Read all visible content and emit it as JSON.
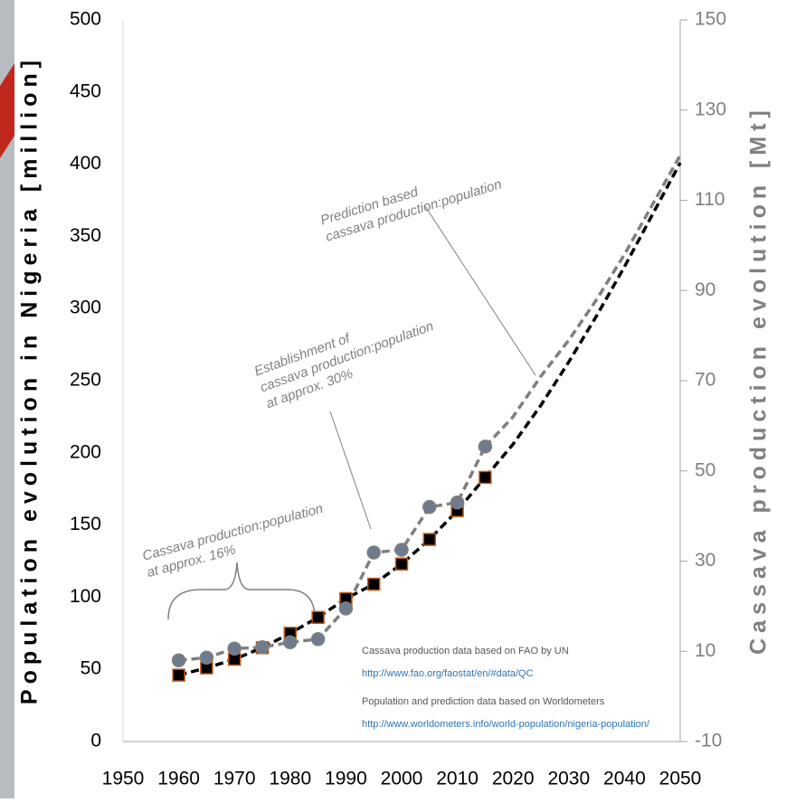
{
  "chart_data": {
    "type": "line",
    "y_label": "Population evolution in Nigeria [million]",
    "y2_label": "Cassava production evolution [Mt]",
    "xlim": [
      1950,
      2050
    ],
    "xticks": [
      1950,
      1960,
      1970,
      1980,
      1990,
      2000,
      2010,
      2020,
      2030,
      2040,
      2050
    ],
    "ylim": [
      0,
      500
    ],
    "yticks": [
      0,
      50,
      100,
      150,
      200,
      250,
      300,
      350,
      400,
      450,
      500
    ],
    "y2lim": [
      -10,
      150
    ],
    "y2ticks": [
      -10,
      10,
      30,
      50,
      70,
      90,
      110,
      130,
      150
    ],
    "series": [
      {
        "axis": "y",
        "color": "#000000",
        "marker": "square",
        "marker_edge": "#c55a11",
        "x": [
          1960,
          1965,
          1970,
          1975,
          1980,
          1985,
          1990,
          1995,
          2000,
          2005,
          2010,
          2015
        ],
        "values": [
          46,
          51,
          57,
          65,
          75,
          86,
          99,
          109,
          123,
          140,
          160,
          183
        ]
      },
      {
        "axis": "y",
        "color": "#000000",
        "marker": "none",
        "x": [
          2015,
          2020,
          2025,
          2030,
          2035,
          2040,
          2045,
          2050
        ],
        "values": [
          183,
          206,
          233,
          263,
          295,
          329,
          365,
          401
        ]
      },
      {
        "axis": "y2",
        "color": "#7f7f7f",
        "marker": "circle",
        "marker_fill": "#6d7b8d",
        "x": [
          1960,
          1965,
          1970,
          1975,
          1980,
          1985,
          1990,
          1995,
          2000,
          2005,
          2010,
          2015
        ],
        "values": [
          8,
          8.6,
          10.6,
          10.9,
          12,
          12.7,
          19.5,
          31.9,
          32.5,
          42,
          43,
          55.4
        ]
      },
      {
        "axis": "y2",
        "color": "#7f7f7f",
        "marker": "none",
        "x": [
          2015,
          2020,
          2025,
          2030,
          2035,
          2040,
          2045,
          2050
        ],
        "values": [
          55.4,
          62,
          71,
          79,
          88,
          98,
          109,
          120
        ]
      }
    ],
    "annotations": [
      {
        "lines": [
          "Prediction based",
          "cassava production:population"
        ]
      },
      {
        "lines": [
          "Establishment of",
          "cassava production:population",
          "at approx. 30%"
        ]
      },
      {
        "lines": [
          "Cassava production:population",
          "at approx. 16%"
        ]
      }
    ],
    "sources": [
      {
        "text": "Cassava production data based on FAO by UN",
        "url": "http://www.fao.org/faostat/en/#data/QC"
      },
      {
        "text": "Population and prediction data based on Worldometers",
        "url": "http://www.worldometers.info/world-population/nigeria-population/"
      }
    ]
  }
}
